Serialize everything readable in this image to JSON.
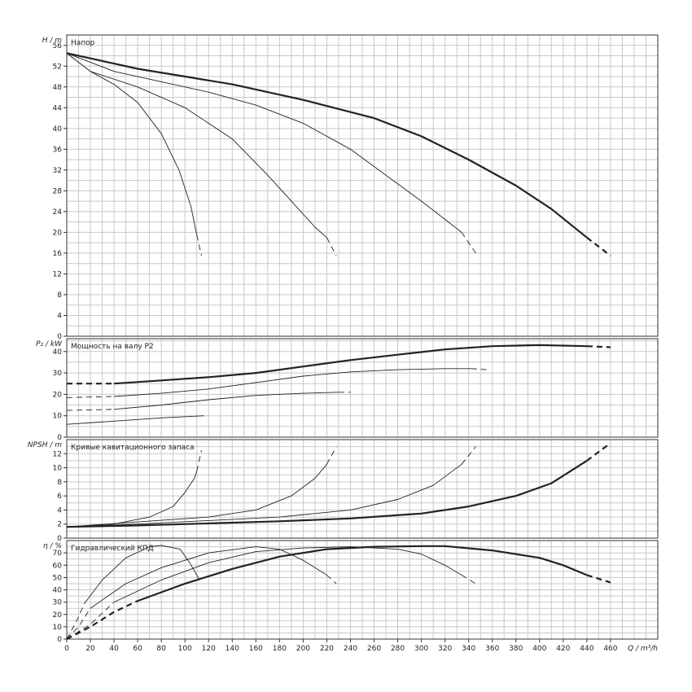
{
  "chart_data": [
    {
      "id": "head",
      "type": "line",
      "title": "Напор",
      "ylabel": "H / m",
      "ylim": [
        0,
        58
      ],
      "yticks": [
        0,
        4,
        8,
        12,
        16,
        20,
        24,
        28,
        32,
        36,
        40,
        44,
        48,
        52,
        56
      ],
      "xlim": [
        0,
        500
      ],
      "series": [
        {
          "weight": "bold",
          "points": [
            [
              0,
              54.5
            ],
            [
              40,
              52.5
            ],
            [
              60,
              51.5
            ],
            [
              100,
              50
            ],
            [
              140,
              48.5
            ],
            [
              200,
              45.5
            ],
            [
              260,
              42
            ],
            [
              300,
              38.5
            ],
            [
              340,
              34
            ],
            [
              380,
              29
            ],
            [
              410,
              24.5
            ],
            [
              440,
              19
            ]
          ],
          "dash": [
            [
              440,
              19
            ],
            [
              460,
              15.5
            ]
          ]
        },
        {
          "weight": "thin",
          "points": [
            [
              0,
              54.5
            ],
            [
              40,
              51
            ],
            [
              80,
              49
            ],
            [
              120,
              47
            ],
            [
              160,
              44.5
            ],
            [
              200,
              41
            ],
            [
              240,
              36
            ],
            [
              270,
              31
            ],
            [
              300,
              26
            ],
            [
              320,
              22.5
            ],
            [
              334,
              20
            ]
          ],
          "dash": [
            [
              334,
              20
            ],
            [
              346,
              16
            ]
          ]
        },
        {
          "weight": "thin",
          "points": [
            [
              0,
              54.5
            ],
            [
              20,
              51
            ],
            [
              60,
              48
            ],
            [
              100,
              44
            ],
            [
              140,
              38
            ],
            [
              170,
              31
            ],
            [
              190,
              26
            ],
            [
              210,
              21
            ],
            [
              220,
              19
            ]
          ],
          "dash": [
            [
              220,
              19
            ],
            [
              228,
              15.5
            ]
          ]
        },
        {
          "weight": "thin",
          "points": [
            [
              0,
              54.5
            ],
            [
              20,
              51
            ],
            [
              40,
              48.5
            ],
            [
              60,
              45
            ],
            [
              80,
              39
            ],
            [
              95,
              32
            ],
            [
              105,
              25
            ],
            [
              110,
              19.5
            ]
          ],
          "dash": [
            [
              110,
              19.5
            ],
            [
              114,
              15.5
            ]
          ]
        }
      ]
    },
    {
      "id": "power",
      "type": "line",
      "title": "Мощность на валу P2",
      "ylabel": "P₂ / kW",
      "ylim": [
        0,
        46
      ],
      "yticks": [
        0,
        10,
        20,
        30,
        40
      ],
      "xlim": [
        0,
        500
      ],
      "series": [
        {
          "weight": "bold",
          "points": [
            [
              40,
              25
            ],
            [
              80,
              26.5
            ],
            [
              120,
              28
            ],
            [
              160,
              30
            ],
            [
              200,
              33
            ],
            [
              240,
              36
            ],
            [
              280,
              38.5
            ],
            [
              320,
              41
            ],
            [
              360,
              42.5
            ],
            [
              400,
              43
            ],
            [
              440,
              42.5
            ]
          ],
          "dash": [
            [
              0,
              25
            ],
            [
              40,
              25
            ]
          ],
          "dash2": [
            [
              440,
              42.5
            ],
            [
              460,
              42
            ]
          ]
        },
        {
          "weight": "thin",
          "points": [
            [
              40,
              19
            ],
            [
              80,
              20.5
            ],
            [
              120,
              22.5
            ],
            [
              160,
              25.5
            ],
            [
              200,
              28.5
            ],
            [
              240,
              30.5
            ],
            [
              280,
              31.5
            ],
            [
              320,
              32
            ],
            [
              342,
              32
            ]
          ],
          "dash": [
            [
              0,
              18.5
            ],
            [
              40,
              19
            ]
          ],
          "dash2": [
            [
              342,
              32
            ],
            [
              356,
              31.5
            ]
          ]
        },
        {
          "weight": "thin",
          "points": [
            [
              40,
              13
            ],
            [
              80,
              15
            ],
            [
              120,
              17.5
            ],
            [
              160,
              19.5
            ],
            [
              200,
              20.5
            ],
            [
              230,
              21
            ]
          ],
          "dash": [
            [
              0,
              12.5
            ],
            [
              40,
              13
            ]
          ],
          "dash2": [
            [
              230,
              21
            ],
            [
              240,
              21
            ]
          ]
        },
        {
          "weight": "thin",
          "points": [
            [
              0,
              6
            ],
            [
              40,
              7.5
            ],
            [
              80,
              9
            ],
            [
              116,
              10
            ]
          ]
        }
      ]
    },
    {
      "id": "npsh",
      "type": "line",
      "title": "Кривые кавитационного запаса",
      "ylabel": "NPSH / m",
      "ylim": [
        0,
        14
      ],
      "yticks": [
        0,
        2,
        4,
        6,
        8,
        10,
        12
      ],
      "xlim": [
        0,
        500
      ],
      "series": [
        {
          "weight": "bold",
          "points": [
            [
              0,
              1.6
            ],
            [
              60,
              1.8
            ],
            [
              120,
              2.1
            ],
            [
              180,
              2.4
            ],
            [
              240,
              2.8
            ],
            [
              300,
              3.5
            ],
            [
              340,
              4.5
            ],
            [
              380,
              6
            ],
            [
              410,
              7.8
            ],
            [
              440,
              11
            ]
          ],
          "dash": [
            [
              440,
              11
            ],
            [
              460,
              13.5
            ]
          ]
        },
        {
          "weight": "thin",
          "points": [
            [
              0,
              1.6
            ],
            [
              60,
              2
            ],
            [
              120,
              2.5
            ],
            [
              180,
              3
            ],
            [
              240,
              4
            ],
            [
              280,
              5.5
            ],
            [
              310,
              7.5
            ],
            [
              334,
              10.5
            ]
          ],
          "dash": [
            [
              334,
              10.5
            ],
            [
              346,
              13
            ]
          ]
        },
        {
          "weight": "thin",
          "points": [
            [
              0,
              1.6
            ],
            [
              60,
              2.3
            ],
            [
              120,
              3
            ],
            [
              160,
              4
            ],
            [
              190,
              6
            ],
            [
              210,
              8.5
            ],
            [
              220,
              10.5
            ]
          ],
          "dash": [
            [
              220,
              10.5
            ],
            [
              228,
              13
            ]
          ]
        },
        {
          "weight": "thin",
          "points": [
            [
              0,
              1.6
            ],
            [
              40,
              2
            ],
            [
              70,
              3
            ],
            [
              90,
              4.5
            ],
            [
              100,
              6.5
            ],
            [
              108,
              8.5
            ],
            [
              110,
              9.5
            ]
          ],
          "dash": [
            [
              110,
              9.5
            ],
            [
              114,
              12.5
            ]
          ]
        }
      ]
    },
    {
      "id": "eff",
      "type": "line",
      "title": "Гидравлический КПД",
      "ylabel": "η / %",
      "ylim": [
        0,
        80
      ],
      "yticks": [
        0,
        10,
        20,
        30,
        40,
        50,
        60,
        70
      ],
      "xlim": [
        0,
        500
      ],
      "xticks": [
        0,
        20,
        40,
        60,
        80,
        100,
        120,
        140,
        160,
        180,
        200,
        220,
        240,
        260,
        280,
        300,
        320,
        340,
        360,
        380,
        400,
        420,
        440,
        460
      ],
      "xlabel": "Q / m³/h",
      "series": [
        {
          "weight": "bold",
          "points": [
            [
              60,
              31
            ],
            [
              100,
              45
            ],
            [
              140,
              57
            ],
            [
              180,
              67
            ],
            [
              220,
              73
            ],
            [
              260,
              75
            ],
            [
              300,
              75.5
            ],
            [
              320,
              75.5
            ],
            [
              360,
              72
            ],
            [
              400,
              66
            ],
            [
              420,
              60
            ],
            [
              440,
              52
            ]
          ],
          "dash": [
            [
              440,
              52
            ],
            [
              460,
              46
            ]
          ],
          "dash2": [
            [
              0,
              0
            ],
            [
              20,
              10
            ],
            [
              40,
              22
            ],
            [
              60,
              31
            ]
          ]
        },
        {
          "weight": "thin",
          "points": [
            [
              40,
              30
            ],
            [
              80,
              48
            ],
            [
              120,
              62
            ],
            [
              160,
              71
            ],
            [
              200,
              74
            ],
            [
              240,
              75
            ],
            [
              280,
              73
            ],
            [
              300,
              69
            ],
            [
              320,
              60
            ],
            [
              334,
              52
            ]
          ],
          "dash": [
            [
              334,
              52
            ],
            [
              346,
              45
            ]
          ],
          "dash2": [
            [
              0,
              0
            ],
            [
              20,
              12
            ],
            [
              40,
              30
            ]
          ]
        },
        {
          "weight": "thin",
          "points": [
            [
              20,
              25
            ],
            [
              50,
              45
            ],
            [
              80,
              58
            ],
            [
              120,
              70
            ],
            [
              160,
              75
            ],
            [
              180,
              73
            ],
            [
              200,
              64
            ],
            [
              220,
              52
            ]
          ],
          "dash": [
            [
              220,
              52
            ],
            [
              228,
              45
            ]
          ],
          "dash2": [
            [
              0,
              0
            ],
            [
              10,
              10
            ],
            [
              20,
              25
            ]
          ]
        },
        {
          "weight": "thin",
          "points": [
            [
              15,
              29
            ],
            [
              30,
              48
            ],
            [
              50,
              66
            ],
            [
              70,
              75
            ],
            [
              80,
              76
            ],
            [
              96,
              73
            ],
            [
              104,
              62
            ],
            [
              110,
              52
            ]
          ],
          "dash": [
            [
              110,
              52
            ],
            [
              114,
              45
            ]
          ],
          "dash2": [
            [
              0,
              0
            ],
            [
              8,
              14
            ],
            [
              15,
              29
            ]
          ]
        }
      ]
    }
  ]
}
